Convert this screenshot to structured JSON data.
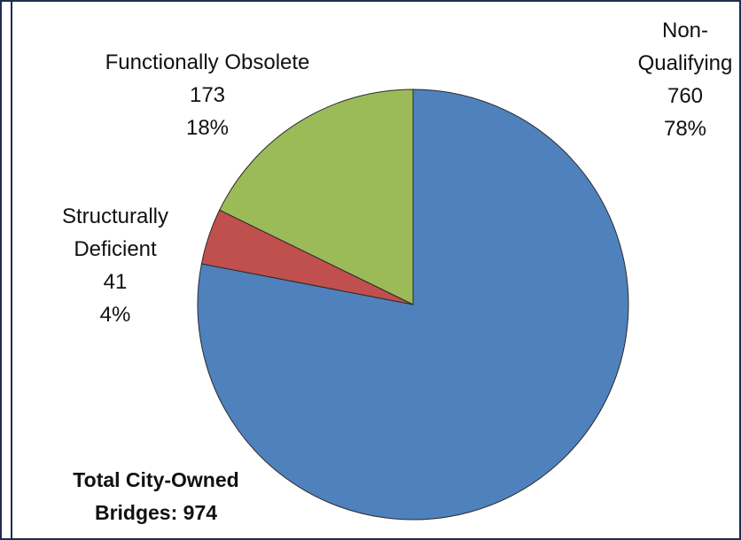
{
  "chart_data": {
    "type": "pie",
    "categories": [
      "Non-Qualifying",
      "Structurally Deficient",
      "Functionally Obsolete"
    ],
    "values": [
      760,
      41,
      173
    ],
    "percent_labels": [
      "78%",
      "4%",
      "18%"
    ],
    "colors": [
      "#4f81bd",
      "#c0504d",
      "#9bbb59"
    ],
    "annotation": "Total City-Owned Bridges: 974"
  }
}
